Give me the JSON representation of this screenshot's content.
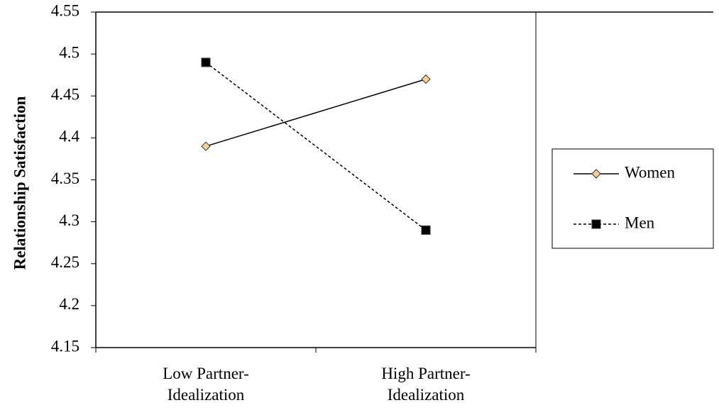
{
  "chart_data": {
    "type": "line",
    "y_label": "Relationship Satisfaction",
    "categories": [
      "Low Partner-Idealization",
      "High Partner-Idealization"
    ],
    "series": [
      {
        "name": "Women",
        "color": "#000000",
        "marker": "diamond",
        "marker_color": "#f5cf8e",
        "dash": false,
        "values": [
          4.39,
          4.47
        ]
      },
      {
        "name": "Men",
        "color": "#000000",
        "marker": "square",
        "marker_color": "#000000",
        "dash": true,
        "values": [
          4.49,
          4.29
        ]
      }
    ],
    "ylim": [
      4.15,
      4.55
    ],
    "yticks": [
      4.15,
      4.2,
      4.25,
      4.3,
      4.35,
      4.4,
      4.45,
      4.5,
      4.55
    ],
    "legend": "right"
  }
}
